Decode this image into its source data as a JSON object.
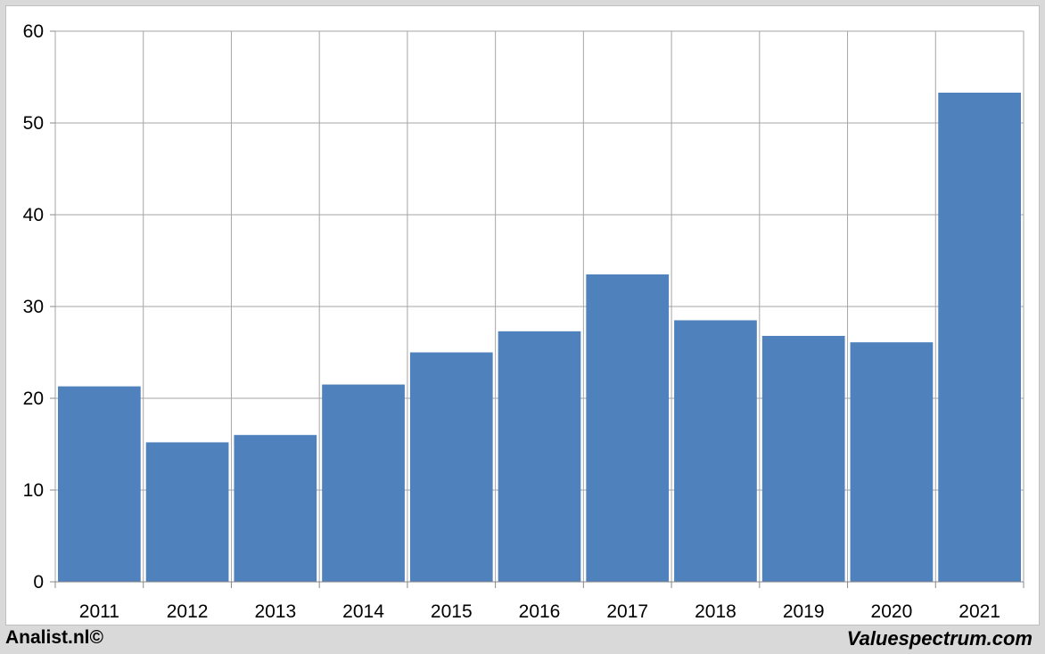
{
  "footer": {
    "left_text": "Analist.nl©",
    "right_text": "Valuespectrum.com"
  },
  "colors": {
    "bar": "#4f81bd",
    "grid": "#a6a6a6",
    "axis": "#888888",
    "background": "#d9d9d9"
  },
  "chart_data": {
    "type": "bar",
    "title": "",
    "xlabel": "",
    "ylabel": "",
    "categories": [
      "2011",
      "2012",
      "2013",
      "2014",
      "2015",
      "2016",
      "2017",
      "2018",
      "2019",
      "2020",
      "2021"
    ],
    "values": [
      21.3,
      15.2,
      16.0,
      21.5,
      25.0,
      27.3,
      33.5,
      28.5,
      26.8,
      26.1,
      53.3
    ],
    "ylim": [
      0,
      60
    ],
    "yticks": [
      0,
      10,
      20,
      30,
      40,
      50,
      60
    ],
    "grid": true,
    "legend": "none"
  }
}
